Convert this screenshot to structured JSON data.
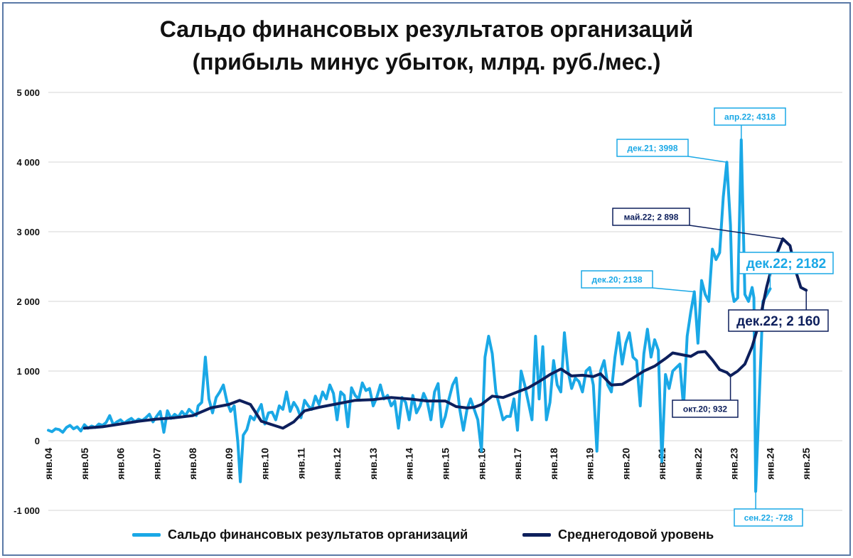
{
  "chart_data": {
    "type": "line",
    "title_line1": "Сальдо финансовых результатов организаций",
    "title_line2": "(прибыль минус убыток, млрд. руб./мес.)",
    "ylim": [
      -1000,
      5000
    ],
    "yticks": [
      "-1 000",
      "0",
      "1 000",
      "2 000",
      "3 000",
      "4 000",
      "5 000"
    ],
    "ytick_values": [
      -1000,
      0,
      1000,
      2000,
      3000,
      4000,
      5000
    ],
    "xlim": [
      2004.0,
      2026.0
    ],
    "xtick_labels": [
      "янв.04",
      "янв.05",
      "янв.06",
      "янв.07",
      "янв.08",
      "янв.09",
      "янв.10",
      "янв.11",
      "янв.12",
      "янв.13",
      "янв.14",
      "янв.15",
      "янв.16",
      "янв.17",
      "янв.18",
      "янв.19",
      "янв.20",
      "янв.21",
      "янв.22",
      "янв.23",
      "янв.24",
      "янв.25"
    ],
    "xtick_values": [
      2004,
      2005,
      2006,
      2007,
      2008,
      2009,
      2010,
      2011,
      2012,
      2013,
      2014,
      2015,
      2016,
      2017,
      2018,
      2019,
      2020,
      2021,
      2022,
      2023,
      2024,
      2025
    ],
    "colors": {
      "monthly": "#1aa8e6",
      "average": "#0d1f5c",
      "grid": "#d4d4d4"
    },
    "series": [
      {
        "name": "Сальдо финансовых результатов организаций",
        "points": [
          [
            2004.0,
            150
          ],
          [
            2004.1,
            130
          ],
          [
            2004.2,
            170
          ],
          [
            2004.3,
            160
          ],
          [
            2004.4,
            120
          ],
          [
            2004.5,
            190
          ],
          [
            2004.6,
            220
          ],
          [
            2004.7,
            170
          ],
          [
            2004.8,
            200
          ],
          [
            2004.9,
            140
          ],
          [
            2005.0,
            230
          ],
          [
            2005.1,
            180
          ],
          [
            2005.2,
            210
          ],
          [
            2005.3,
            190
          ],
          [
            2005.4,
            240
          ],
          [
            2005.5,
            220
          ],
          [
            2005.6,
            260
          ],
          [
            2005.7,
            360
          ],
          [
            2005.8,
            230
          ],
          [
            2005.9,
            270
          ],
          [
            2006.0,
            300
          ],
          [
            2006.1,
            250
          ],
          [
            2006.2,
            290
          ],
          [
            2006.3,
            320
          ],
          [
            2006.4,
            270
          ],
          [
            2006.5,
            310
          ],
          [
            2006.6,
            290
          ],
          [
            2006.7,
            330
          ],
          [
            2006.8,
            380
          ],
          [
            2006.9,
            270
          ],
          [
            2007.0,
            350
          ],
          [
            2007.1,
            420
          ],
          [
            2007.2,
            120
          ],
          [
            2007.3,
            430
          ],
          [
            2007.4,
            320
          ],
          [
            2007.5,
            380
          ],
          [
            2007.6,
            340
          ],
          [
            2007.7,
            420
          ],
          [
            2007.8,
            360
          ],
          [
            2007.9,
            450
          ],
          [
            2008.0,
            400
          ],
          [
            2008.1,
            360
          ],
          [
            2008.15,
            500
          ],
          [
            2008.25,
            550
          ],
          [
            2008.35,
            1200
          ],
          [
            2008.45,
            600
          ],
          [
            2008.55,
            400
          ],
          [
            2008.65,
            620
          ],
          [
            2008.75,
            700
          ],
          [
            2008.85,
            800
          ],
          [
            2008.95,
            560
          ],
          [
            2009.05,
            420
          ],
          [
            2009.15,
            500
          ],
          [
            2009.25,
            -20
          ],
          [
            2009.32,
            -590
          ],
          [
            2009.4,
            80
          ],
          [
            2009.5,
            160
          ],
          [
            2009.6,
            350
          ],
          [
            2009.7,
            300
          ],
          [
            2009.8,
            420
          ],
          [
            2009.9,
            520
          ],
          [
            2010.0,
            240
          ],
          [
            2010.1,
            400
          ],
          [
            2010.2,
            410
          ],
          [
            2010.3,
            300
          ],
          [
            2010.4,
            500
          ],
          [
            2010.5,
            450
          ],
          [
            2010.6,
            700
          ],
          [
            2010.7,
            420
          ],
          [
            2010.8,
            550
          ],
          [
            2010.9,
            470
          ],
          [
            2011.0,
            330
          ],
          [
            2011.1,
            580
          ],
          [
            2011.2,
            500
          ],
          [
            2011.3,
            450
          ],
          [
            2011.4,
            640
          ],
          [
            2011.5,
            520
          ],
          [
            2011.6,
            700
          ],
          [
            2011.7,
            600
          ],
          [
            2011.8,
            800
          ],
          [
            2011.9,
            680
          ],
          [
            2012.0,
            300
          ],
          [
            2012.1,
            700
          ],
          [
            2012.2,
            650
          ],
          [
            2012.3,
            200
          ],
          [
            2012.4,
            760
          ],
          [
            2012.5,
            650
          ],
          [
            2012.6,
            600
          ],
          [
            2012.7,
            830
          ],
          [
            2012.8,
            720
          ],
          [
            2012.9,
            750
          ],
          [
            2013.0,
            500
          ],
          [
            2013.1,
            620
          ],
          [
            2013.2,
            800
          ],
          [
            2013.3,
            600
          ],
          [
            2013.4,
            650
          ],
          [
            2013.5,
            500
          ],
          [
            2013.6,
            570
          ],
          [
            2013.7,
            180
          ],
          [
            2013.8,
            620
          ],
          [
            2013.9,
            550
          ],
          [
            2014.0,
            300
          ],
          [
            2014.1,
            650
          ],
          [
            2014.2,
            400
          ],
          [
            2014.3,
            500
          ],
          [
            2014.4,
            680
          ],
          [
            2014.5,
            560
          ],
          [
            2014.6,
            300
          ],
          [
            2014.7,
            700
          ],
          [
            2014.8,
            820
          ],
          [
            2014.9,
            200
          ],
          [
            2015.0,
            350
          ],
          [
            2015.1,
            600
          ],
          [
            2015.2,
            800
          ],
          [
            2015.3,
            900
          ],
          [
            2015.4,
            450
          ],
          [
            2015.5,
            150
          ],
          [
            2015.6,
            450
          ],
          [
            2015.7,
            600
          ],
          [
            2015.8,
            450
          ],
          [
            2015.9,
            300
          ],
          [
            2016.0,
            -150
          ],
          [
            2016.1,
            1200
          ],
          [
            2016.2,
            1500
          ],
          [
            2016.3,
            1250
          ],
          [
            2016.4,
            700
          ],
          [
            2016.5,
            500
          ],
          [
            2016.6,
            300
          ],
          [
            2016.7,
            350
          ],
          [
            2016.8,
            350
          ],
          [
            2016.9,
            600
          ],
          [
            2017.0,
            150
          ],
          [
            2017.1,
            1000
          ],
          [
            2017.2,
            800
          ],
          [
            2017.3,
            550
          ],
          [
            2017.4,
            300
          ],
          [
            2017.5,
            1500
          ],
          [
            2017.6,
            600
          ],
          [
            2017.7,
            1350
          ],
          [
            2017.8,
            300
          ],
          [
            2017.9,
            550
          ],
          [
            2018.0,
            1150
          ],
          [
            2018.1,
            800
          ],
          [
            2018.2,
            700
          ],
          [
            2018.3,
            1550
          ],
          [
            2018.4,
            1000
          ],
          [
            2018.5,
            750
          ],
          [
            2018.6,
            900
          ],
          [
            2018.7,
            850
          ],
          [
            2018.8,
            700
          ],
          [
            2018.9,
            1000
          ],
          [
            2019.0,
            1050
          ],
          [
            2019.1,
            800
          ],
          [
            2019.2,
            -150
          ],
          [
            2019.3,
            1000
          ],
          [
            2019.4,
            1150
          ],
          [
            2019.5,
            800
          ],
          [
            2019.6,
            700
          ],
          [
            2019.7,
            1200
          ],
          [
            2019.8,
            1550
          ],
          [
            2019.9,
            1100
          ],
          [
            2020.0,
            1400
          ],
          [
            2020.1,
            1550
          ],
          [
            2020.2,
            1200
          ],
          [
            2020.3,
            1150
          ],
          [
            2020.4,
            500
          ],
          [
            2020.5,
            1250
          ],
          [
            2020.6,
            1600
          ],
          [
            2020.7,
            1200
          ],
          [
            2020.8,
            1450
          ],
          [
            2020.9,
            1300
          ],
          [
            2021.0,
            -300
          ],
          [
            2021.1,
            950
          ],
          [
            2021.2,
            750
          ],
          [
            2021.3,
            1000
          ],
          [
            2021.4,
            1050
          ],
          [
            2021.5,
            1100
          ],
          [
            2021.6,
            480
          ],
          [
            2021.7,
            1500
          ],
          [
            2021.8,
            1850
          ],
          [
            2021.9,
            2138
          ],
          [
            2022.0,
            1400
          ],
          [
            2022.1,
            2300
          ],
          [
            2022.2,
            2100
          ],
          [
            2022.3,
            2000
          ],
          [
            2022.4,
            2750
          ],
          [
            2022.5,
            2600
          ],
          [
            2022.6,
            2700
          ],
          [
            2022.7,
            3500
          ],
          [
            2022.8,
            3998
          ],
          [
            2022.9,
            3100
          ],
          [
            2022.95,
            2150
          ],
          [
            2023.0,
            2000
          ],
          [
            2023.1,
            2050
          ],
          [
            2023.2,
            4318
          ],
          [
            2023.3,
            2100
          ],
          [
            2023.4,
            2000
          ],
          [
            2023.5,
            2200
          ],
          [
            2023.55,
            2050
          ],
          [
            2023.6,
            -728
          ],
          [
            2023.8,
            2000
          ],
          [
            2024.0,
            2182
          ]
        ]
      },
      {
        "name": "Среднегодовой уровень",
        "points": [
          [
            2005.0,
            180
          ],
          [
            2005.5,
            200
          ],
          [
            2006.0,
            240
          ],
          [
            2006.5,
            280
          ],
          [
            2007.0,
            310
          ],
          [
            2007.5,
            330
          ],
          [
            2008.0,
            360
          ],
          [
            2008.5,
            470
          ],
          [
            2009.0,
            520
          ],
          [
            2009.3,
            580
          ],
          [
            2009.6,
            520
          ],
          [
            2009.9,
            280
          ],
          [
            2010.2,
            230
          ],
          [
            2010.5,
            180
          ],
          [
            2010.8,
            270
          ],
          [
            2011.1,
            430
          ],
          [
            2011.5,
            480
          ],
          [
            2012.0,
            530
          ],
          [
            2012.5,
            580
          ],
          [
            2013.0,
            590
          ],
          [
            2013.5,
            620
          ],
          [
            2014.0,
            600
          ],
          [
            2014.5,
            570
          ],
          [
            2015.0,
            570
          ],
          [
            2015.3,
            490
          ],
          [
            2015.6,
            470
          ],
          [
            2015.8,
            480
          ],
          [
            2016.0,
            520
          ],
          [
            2016.3,
            640
          ],
          [
            2016.6,
            620
          ],
          [
            2017.0,
            700
          ],
          [
            2017.3,
            760
          ],
          [
            2017.6,
            850
          ],
          [
            2017.9,
            950
          ],
          [
            2018.2,
            1030
          ],
          [
            2018.5,
            930
          ],
          [
            2018.8,
            940
          ],
          [
            2019.1,
            920
          ],
          [
            2019.3,
            960
          ],
          [
            2019.6,
            800
          ],
          [
            2019.9,
            810
          ],
          [
            2020.2,
            900
          ],
          [
            2020.5,
            1000
          ],
          [
            2020.8,
            1070
          ],
          [
            2021.1,
            1180
          ],
          [
            2021.3,
            1260
          ],
          [
            2021.6,
            1230
          ],
          [
            2021.8,
            1210
          ],
          [
            2022.0,
            1270
          ],
          [
            2022.2,
            1280
          ],
          [
            2022.4,
            1160
          ],
          [
            2022.6,
            1020
          ],
          [
            2022.8,
            980
          ],
          [
            2022.9,
            932
          ],
          [
            2023.1,
            1000
          ],
          [
            2023.3,
            1100
          ],
          [
            2023.5,
            1350
          ],
          [
            2023.7,
            1700
          ],
          [
            2023.9,
            2200
          ],
          [
            2024.1,
            2600
          ],
          [
            2024.2,
            2700
          ],
          [
            2024.35,
            2898
          ],
          [
            2024.55,
            2800
          ],
          [
            2024.7,
            2450
          ],
          [
            2024.85,
            2200
          ],
          [
            2025.0,
            2160
          ]
        ]
      }
    ],
    "annotations": [
      {
        "text": "апр.22; 4318",
        "style": "monthly",
        "point": [
          2023.2,
          4318
        ]
      },
      {
        "text": "дек.21; 3998",
        "style": "monthly",
        "point": [
          2022.8,
          3998
        ]
      },
      {
        "text": "май.22; 2 898",
        "style": "average",
        "point": [
          2024.35,
          2898
        ]
      },
      {
        "text": "дек.20; 2138",
        "style": "monthly",
        "point": [
          2021.9,
          2138
        ]
      },
      {
        "text": "дек.22; 2182",
        "style": "monthly-big",
        "point": [
          2024.0,
          2182
        ]
      },
      {
        "text": "дек.22; 2 160",
        "style": "average-big",
        "point": [
          2025.0,
          2160
        ]
      },
      {
        "text": "окт.20; 932",
        "style": "average",
        "point": [
          2022.9,
          932
        ]
      },
      {
        "text": "сен.22; -728",
        "style": "monthly",
        "point": [
          2023.6,
          -728
        ]
      }
    ]
  },
  "legend": {
    "monthly_label": "Сальдо финансовых результатов организаций",
    "average_label": "Среднегодовой уровень"
  }
}
